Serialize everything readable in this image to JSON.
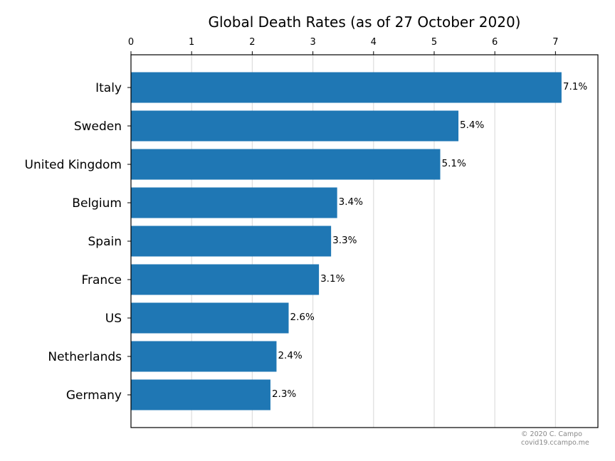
{
  "chart_data": {
    "type": "bar",
    "orientation": "horizontal",
    "title": "Global Death Rates (as of 27 October 2020)",
    "xlabel": "",
    "ylabel": "",
    "categories": [
      "Italy",
      "Sweden",
      "United Kingdom",
      "Belgium",
      "Spain",
      "France",
      "US",
      "Netherlands",
      "Germany"
    ],
    "values": [
      7.1,
      5.4,
      5.1,
      3.4,
      3.3,
      3.1,
      2.6,
      2.4,
      2.3
    ],
    "data_labels": [
      "7.1%",
      "5.4%",
      "5.1%",
      "3.4%",
      "3.3%",
      "3.1%",
      "2.6%",
      "2.4%",
      "2.3%"
    ],
    "x_ticks": [
      "0",
      "1",
      "2",
      "3",
      "4",
      "5",
      "6",
      "7"
    ],
    "xlim": [
      0,
      7.7
    ],
    "x_axis_position": "top",
    "grid": "vertical",
    "bar_color": "#1f77b4",
    "grid_color": "#dddddd"
  },
  "credit": {
    "line1": "© 2020 C. Campo",
    "line2": "covid19.ccampo.me"
  }
}
